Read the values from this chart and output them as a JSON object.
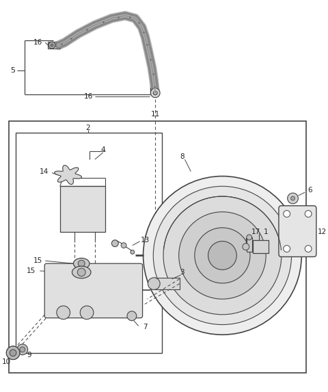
{
  "bg_color": "#ffffff",
  "fig_width": 4.8,
  "fig_height": 5.73,
  "dpi": 100,
  "lc": "#444444",
  "lc_dark": "#222222",
  "gray1": "#cccccc",
  "gray2": "#e8e8e8",
  "gray3": "#aaaaaa"
}
